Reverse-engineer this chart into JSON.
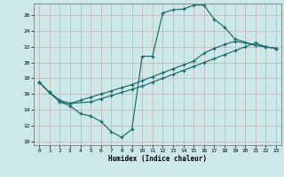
{
  "xlabel": "Humidex (Indice chaleur)",
  "xlim": [
    -0.5,
    23.5
  ],
  "ylim": [
    9.5,
    27.5
  ],
  "yticks": [
    10,
    12,
    14,
    16,
    18,
    20,
    22,
    24,
    26
  ],
  "xticks": [
    0,
    1,
    2,
    3,
    4,
    5,
    6,
    7,
    8,
    9,
    10,
    11,
    12,
    13,
    14,
    15,
    16,
    17,
    18,
    19,
    20,
    21,
    22,
    23
  ],
  "bg_color": "#cde8e8",
  "line_color": "#1a6b6b",
  "line1_x": [
    0,
    1,
    2,
    3,
    4,
    5,
    6,
    7,
    8,
    9,
    10,
    11,
    12,
    13,
    14,
    15,
    16,
    17,
    18,
    19,
    21,
    22,
    23
  ],
  "line1_y": [
    17.5,
    16.2,
    15.0,
    14.5,
    13.5,
    13.2,
    12.5,
    11.2,
    10.5,
    11.5,
    20.8,
    20.8,
    26.3,
    26.7,
    26.8,
    27.3,
    27.3,
    25.5,
    24.5,
    23.0,
    22.2,
    22.0,
    21.8
  ],
  "line2_x": [
    0,
    1,
    2,
    3,
    4,
    5,
    6,
    7,
    8,
    9,
    10,
    11,
    12,
    13,
    14,
    15,
    16,
    17,
    18,
    19,
    20,
    21,
    22,
    23
  ],
  "line2_y": [
    17.5,
    16.2,
    15.2,
    14.8,
    15.2,
    15.6,
    16.0,
    16.4,
    16.8,
    17.2,
    17.7,
    18.2,
    18.7,
    19.2,
    19.7,
    20.2,
    21.2,
    21.8,
    22.3,
    22.7,
    22.5,
    22.2,
    22.0,
    21.8
  ],
  "line3_x": [
    0,
    1,
    2,
    3,
    5,
    6,
    7,
    8,
    9,
    10,
    11,
    12,
    13,
    14,
    15,
    16,
    17,
    18,
    19,
    20,
    21,
    22,
    23
  ],
  "line3_y": [
    17.5,
    16.2,
    15.0,
    14.8,
    15.0,
    15.4,
    15.8,
    16.2,
    16.6,
    17.0,
    17.5,
    18.0,
    18.5,
    19.0,
    19.5,
    20.0,
    20.5,
    21.0,
    21.5,
    22.0,
    22.5,
    22.0,
    21.8
  ]
}
